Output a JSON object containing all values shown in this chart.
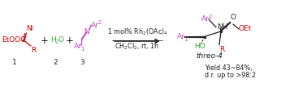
{
  "bg_color": "#ffffff",
  "fig_width": 3.78,
  "fig_height": 1.08,
  "dpi": 100,
  "colors": {
    "red": "#cc0000",
    "green": "#33aa33",
    "purple": "#cc44cc",
    "black": "#222222",
    "dark_red": "#cc0000"
  },
  "text": {
    "arrow_top": "1 mol% Rh$_2$(OAc)$_4$",
    "arrow_bot": "CH$_2$Cl$_2$, rt, 1h",
    "threo": "threo-4",
    "yield": "Yield 43~84%,",
    "dr": "d.r. up to >98:2"
  }
}
